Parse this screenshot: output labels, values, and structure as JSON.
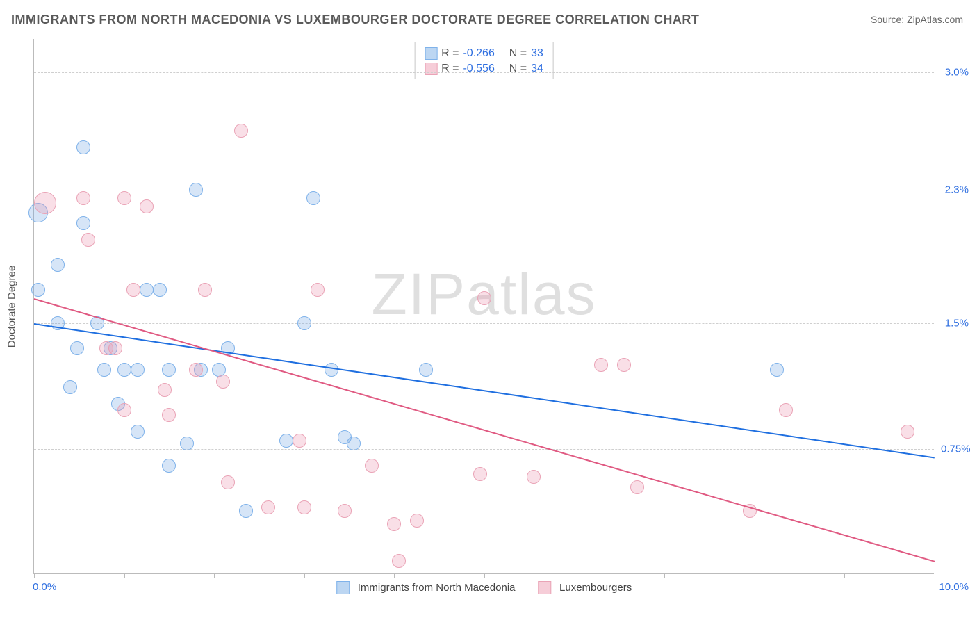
{
  "title": "IMMIGRANTS FROM NORTH MACEDONIA VS LUXEMBOURGER DOCTORATE DEGREE CORRELATION CHART",
  "source_label": "Source: ZipAtlas.com",
  "watermark": {
    "bold": "ZIP",
    "thin": "atlas"
  },
  "chart": {
    "type": "scatter",
    "background_color": "#ffffff",
    "axis_line_color": "#bbbbbb",
    "grid_color": "#cfcfcf",
    "tick_label_color": "#2f6fe0",
    "tick_fontsize": 15,
    "title_fontsize": 18,
    "title_color": "#5a5a5a",
    "xlim": [
      0.0,
      10.0
    ],
    "ylim": [
      0.0,
      3.2
    ],
    "x_start_label": "0.0%",
    "x_end_label": "10.0%",
    "x_minor_ticks": [
      0.0,
      1.0,
      2.0,
      3.0,
      4.0,
      5.0,
      6.0,
      7.0,
      8.0,
      9.0,
      10.0
    ],
    "y_gridlines": [
      0.75,
      1.5,
      2.3,
      3.0
    ],
    "y_gridline_labels": [
      "0.75%",
      "1.5%",
      "2.3%",
      "3.0%"
    ],
    "y_axis_title": "Doctorate Degree",
    "point_radius": 10,
    "point_border_width": 1.5,
    "point_fill_opacity": 0.3
  },
  "series": [
    {
      "name": "Immigrants from North Macedonia",
      "swatch_fill": "#bcd6f2",
      "swatch_stroke": "#7fb2ea",
      "point_fill": "rgba(120,170,230,0.30)",
      "point_stroke": "#7fb2ea",
      "trend_color": "#1f6fe0",
      "R": "-0.266",
      "N": "33",
      "trend": {
        "x1": 0.0,
        "y1": 1.5,
        "x2": 10.0,
        "y2": 0.7
      },
      "points": [
        {
          "x": 0.05,
          "y": 2.16,
          "r": 14
        },
        {
          "x": 0.05,
          "y": 1.7,
          "r": 10
        },
        {
          "x": 0.26,
          "y": 1.85,
          "r": 10
        },
        {
          "x": 0.26,
          "y": 1.5,
          "r": 10
        },
        {
          "x": 0.55,
          "y": 2.55,
          "r": 10
        },
        {
          "x": 0.4,
          "y": 1.12,
          "r": 10
        },
        {
          "x": 0.55,
          "y": 2.1,
          "r": 10
        },
        {
          "x": 0.48,
          "y": 1.35,
          "r": 10
        },
        {
          "x": 0.85,
          "y": 1.35,
          "r": 10
        },
        {
          "x": 0.93,
          "y": 1.02,
          "r": 10
        },
        {
          "x": 0.7,
          "y": 1.5,
          "r": 10
        },
        {
          "x": 1.15,
          "y": 0.85,
          "r": 10
        },
        {
          "x": 1.0,
          "y": 1.22,
          "r": 10
        },
        {
          "x": 1.15,
          "y": 1.22,
          "r": 10
        },
        {
          "x": 1.25,
          "y": 1.7,
          "r": 10
        },
        {
          "x": 1.4,
          "y": 1.7,
          "r": 10
        },
        {
          "x": 1.5,
          "y": 1.22,
          "r": 10
        },
        {
          "x": 1.5,
          "y": 0.65,
          "r": 10
        },
        {
          "x": 1.8,
          "y": 2.3,
          "r": 10
        },
        {
          "x": 1.85,
          "y": 1.22,
          "r": 10
        },
        {
          "x": 2.05,
          "y": 1.22,
          "r": 10
        },
        {
          "x": 2.15,
          "y": 1.35,
          "r": 10
        },
        {
          "x": 2.35,
          "y": 0.38,
          "r": 10
        },
        {
          "x": 2.8,
          "y": 0.8,
          "r": 10
        },
        {
          "x": 3.1,
          "y": 2.25,
          "r": 10
        },
        {
          "x": 3.0,
          "y": 1.5,
          "r": 10
        },
        {
          "x": 3.45,
          "y": 0.82,
          "r": 10
        },
        {
          "x": 3.55,
          "y": 0.78,
          "r": 10
        },
        {
          "x": 4.35,
          "y": 1.22,
          "r": 10
        },
        {
          "x": 3.3,
          "y": 1.22,
          "r": 10
        },
        {
          "x": 1.7,
          "y": 0.78,
          "r": 10
        },
        {
          "x": 8.25,
          "y": 1.22,
          "r": 10
        },
        {
          "x": 0.78,
          "y": 1.22,
          "r": 10
        }
      ]
    },
    {
      "name": "Luxembourgers",
      "swatch_fill": "#f6cdd8",
      "swatch_stroke": "#eaa3b6",
      "point_fill": "rgba(235,150,175,0.30)",
      "point_stroke": "#eaa3b6",
      "trend_color": "#e05a82",
      "R": "-0.556",
      "N": "34",
      "trend": {
        "x1": 0.0,
        "y1": 1.65,
        "x2": 10.0,
        "y2": 0.08
      },
      "points": [
        {
          "x": 0.12,
          "y": 2.22,
          "r": 16
        },
        {
          "x": 0.55,
          "y": 2.25,
          "r": 10
        },
        {
          "x": 0.6,
          "y": 2.0,
          "r": 10
        },
        {
          "x": 1.0,
          "y": 2.25,
          "r": 10
        },
        {
          "x": 1.25,
          "y": 2.2,
          "r": 10
        },
        {
          "x": 0.9,
          "y": 1.35,
          "r": 10
        },
        {
          "x": 1.1,
          "y": 1.7,
          "r": 10
        },
        {
          "x": 1.45,
          "y": 1.1,
          "r": 10
        },
        {
          "x": 1.5,
          "y": 0.95,
          "r": 10
        },
        {
          "x": 1.8,
          "y": 1.22,
          "r": 10
        },
        {
          "x": 1.9,
          "y": 1.7,
          "r": 10
        },
        {
          "x": 2.1,
          "y": 1.15,
          "r": 10
        },
        {
          "x": 2.15,
          "y": 0.55,
          "r": 10
        },
        {
          "x": 2.3,
          "y": 2.65,
          "r": 10
        },
        {
          "x": 2.6,
          "y": 0.4,
          "r": 10
        },
        {
          "x": 3.0,
          "y": 0.4,
          "r": 10
        },
        {
          "x": 3.15,
          "y": 1.7,
          "r": 10
        },
        {
          "x": 3.45,
          "y": 0.38,
          "r": 10
        },
        {
          "x": 3.75,
          "y": 0.65,
          "r": 10
        },
        {
          "x": 2.95,
          "y": 0.8,
          "r": 10
        },
        {
          "x": 4.0,
          "y": 0.3,
          "r": 10
        },
        {
          "x": 4.05,
          "y": 0.08,
          "r": 10
        },
        {
          "x": 4.25,
          "y": 0.32,
          "r": 10
        },
        {
          "x": 4.95,
          "y": 0.6,
          "r": 10
        },
        {
          "x": 5.0,
          "y": 1.65,
          "r": 10
        },
        {
          "x": 5.55,
          "y": 0.58,
          "r": 10
        },
        {
          "x": 6.3,
          "y": 1.25,
          "r": 10
        },
        {
          "x": 6.55,
          "y": 1.25,
          "r": 10
        },
        {
          "x": 6.7,
          "y": 0.52,
          "r": 10
        },
        {
          "x": 7.95,
          "y": 0.38,
          "r": 10
        },
        {
          "x": 8.35,
          "y": 0.98,
          "r": 10
        },
        {
          "x": 9.7,
          "y": 0.85,
          "r": 10
        },
        {
          "x": 1.0,
          "y": 0.98,
          "r": 10
        },
        {
          "x": 0.8,
          "y": 1.35,
          "r": 10
        }
      ]
    }
  ],
  "legend": {
    "R_label": "R =",
    "N_label": "N ="
  }
}
